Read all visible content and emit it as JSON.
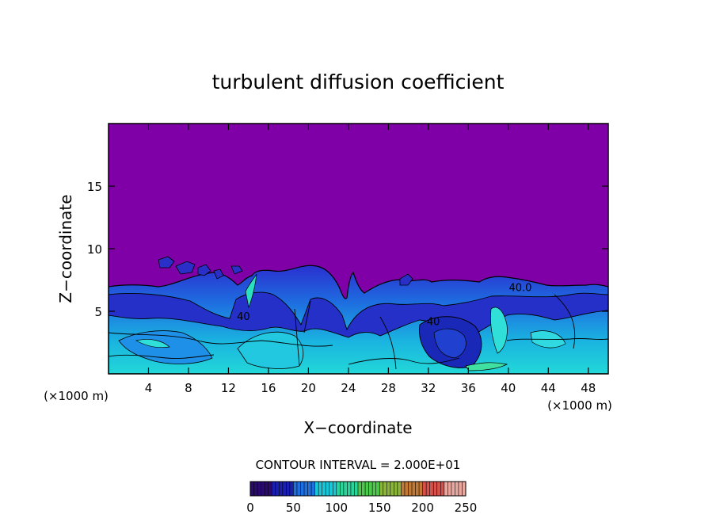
{
  "chart_data": {
    "type": "heatmap",
    "title": "turbulent diffusion coefficient",
    "xlabel": "X−coordinate",
    "ylabel": "Z−coordinate",
    "x_unit_left": "(×1000 m)",
    "x_unit_right": "(×1000 m)",
    "xlim": [
      0,
      50
    ],
    "ylim": [
      0,
      20
    ],
    "x_ticks": [
      4,
      8,
      12,
      16,
      20,
      24,
      28,
      32,
      36,
      40,
      44,
      48
    ],
    "y_ticks": [
      5,
      10,
      15
    ],
    "contour_interval_text": "CONTOUR INTERVAL = 2.000E+01",
    "contour_interval": 20,
    "colorbar": {
      "min": 0,
      "max": 250,
      "ticks": [
        0,
        50,
        100,
        150,
        200,
        250
      ],
      "colors": [
        "#2a0a6e",
        "#1a1fb0",
        "#1e6fe0",
        "#19c8d8",
        "#2ad39a",
        "#4cc84a",
        "#8ab43a",
        "#c07a36",
        "#d8504a",
        "#e8a8a0"
      ]
    },
    "background_color": "#8000a8",
    "contour_labels": [
      {
        "x": 13.5,
        "z": 4.3,
        "text": "40"
      },
      {
        "x": 32.5,
        "z": 3.9,
        "text": "40"
      },
      {
        "x": 41.2,
        "z": 6.6,
        "text": "40.0"
      }
    ]
  }
}
